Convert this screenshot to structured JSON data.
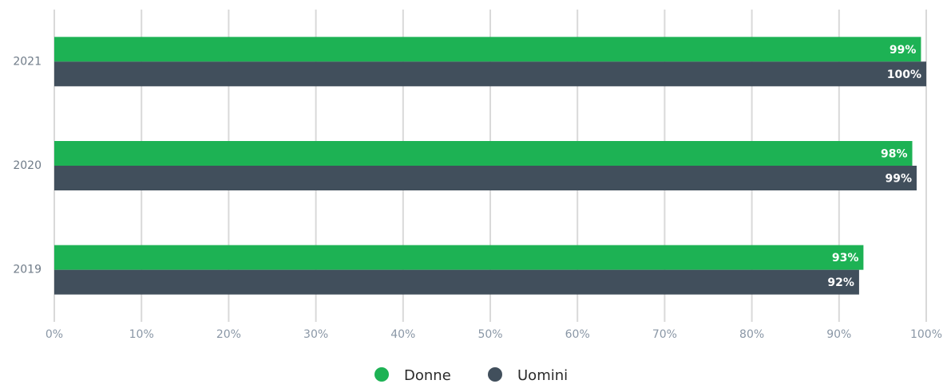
{
  "chart_data": {
    "type": "hbar",
    "categories": [
      "2021",
      "2020",
      "2019"
    ],
    "series": [
      {
        "name": "Donne",
        "color": "#1db254",
        "values": [
          99.4,
          98.4,
          92.8
        ],
        "value_labels": [
          "99%",
          "98%",
          "93%"
        ]
      },
      {
        "name": "Uomini",
        "color": "#414f5c",
        "values": [
          100,
          98.9,
          92.3
        ],
        "value_labels": [
          "100%",
          "99%",
          "92%"
        ]
      }
    ],
    "xlim": [
      0,
      100
    ],
    "xticks": [
      {
        "value": 0,
        "label": "0%"
      },
      {
        "value": 10,
        "label": "10%"
      },
      {
        "value": 20,
        "label": "20%"
      },
      {
        "value": 30,
        "label": "30%"
      },
      {
        "value": 40,
        "label": "40%"
      },
      {
        "value": 50,
        "label": "50%"
      },
      {
        "value": 60,
        "label": "60%"
      },
      {
        "value": 70,
        "label": "70%"
      },
      {
        "value": 80,
        "label": "80%"
      },
      {
        "value": 90,
        "label": "90%"
      },
      {
        "value": 100,
        "label": "100%"
      }
    ],
    "grid": true
  }
}
